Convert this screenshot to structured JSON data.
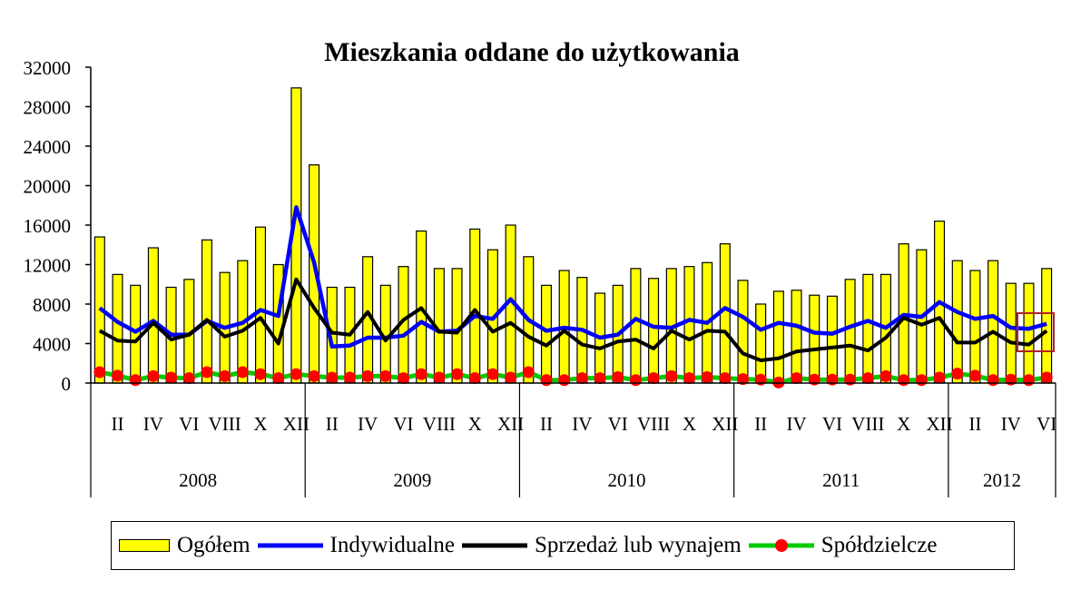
{
  "chart_data": {
    "type": "bar",
    "title": "Mieszkania oddane do użytkowania",
    "ylim": [
      0,
      32000
    ],
    "yticks": [
      "0",
      "4000",
      "8000",
      "12000",
      "16000",
      "20000",
      "24000",
      "28000",
      "32000"
    ],
    "x_tick_labels": [
      "II",
      "IV",
      "VI",
      "VIII",
      "X",
      "XII",
      "II",
      "IV",
      "VI",
      "VIII",
      "X",
      "XII",
      "II",
      "IV",
      "VI",
      "VIII",
      "X",
      "XII",
      "II",
      "IV",
      "VI",
      "VIII",
      "X",
      "XII",
      "II",
      "IV",
      "VI"
    ],
    "years": [
      "2008",
      "2009",
      "2010",
      "2011",
      "2012"
    ],
    "months_per_year": [
      12,
      12,
      12,
      12,
      6
    ],
    "categories": [
      "I 2008",
      "II 2008",
      "III 2008",
      "IV 2008",
      "V 2008",
      "VI 2008",
      "VII 2008",
      "VIII 2008",
      "IX 2008",
      "X 2008",
      "XI 2008",
      "XII 2008",
      "I 2009",
      "II 2009",
      "III 2009",
      "IV 2009",
      "V 2009",
      "VI 2009",
      "VII 2009",
      "VIII 2009",
      "IX 2009",
      "X 2009",
      "XI 2009",
      "XII 2009",
      "I 2010",
      "II 2010",
      "III 2010",
      "IV 2010",
      "V 2010",
      "VI 2010",
      "VII 2010",
      "VIII 2010",
      "IX 2010",
      "X 2010",
      "XI 2010",
      "XII 2010",
      "I 2011",
      "II 2011",
      "III 2011",
      "IV 2011",
      "V 2011",
      "VI 2011",
      "VII 2011",
      "VIII 2011",
      "IX 2011",
      "X 2011",
      "XI 2011",
      "XII 2011",
      "I 2012",
      "II 2012",
      "III 2012",
      "IV 2012",
      "V 2012",
      "VI 2012"
    ],
    "series": [
      {
        "name": "Ogółem",
        "type": "bar",
        "color": "#ffff00",
        "values": [
          14800,
          11000,
          9900,
          13700,
          9700,
          10500,
          14500,
          11200,
          12400,
          15800,
          12000,
          29900,
          22100,
          9700,
          9700,
          12800,
          9900,
          11800,
          15400,
          11600,
          11600,
          15600,
          13500,
          16000,
          12800,
          9900,
          11400,
          10700,
          9100,
          9900,
          11600,
          10600,
          11600,
          11800,
          12200,
          14100,
          10400,
          8000,
          9300,
          9400,
          8900,
          8800,
          10500,
          11000,
          11000,
          14100,
          13500,
          16400,
          12400,
          11400,
          12400,
          10100,
          10100,
          11600
        ]
      },
      {
        "name": "Indywidualne",
        "type": "line",
        "color": "#0000ff",
        "values": [
          7600,
          6200,
          5200,
          6300,
          4900,
          4900,
          6300,
          5600,
          6100,
          7400,
          6800,
          17800,
          12200,
          3700,
          3800,
          4600,
          4600,
          4800,
          6200,
          5200,
          5300,
          6800,
          6500,
          8500,
          6400,
          5300,
          5600,
          5400,
          4600,
          4900,
          6500,
          5700,
          5600,
          6400,
          6100,
          7600,
          6700,
          5400,
          6100,
          5800,
          5100,
          5000,
          5700,
          6300,
          5600,
          6900,
          6700,
          8200,
          7200,
          6500,
          6800,
          5600,
          5500,
          6000
        ]
      },
      {
        "name": "Sprzedaż lub wynajem",
        "type": "line",
        "color": "#000000",
        "values": [
          5300,
          4300,
          4200,
          6100,
          4400,
          4900,
          6400,
          4700,
          5300,
          6600,
          4000,
          10500,
          7600,
          5100,
          4900,
          7200,
          4300,
          6400,
          7600,
          5200,
          5100,
          7400,
          5200,
          6100,
          4700,
          3800,
          5300,
          3900,
          3500,
          4200,
          4400,
          3500,
          5300,
          4400,
          5300,
          5200,
          3000,
          2300,
          2500,
          3200,
          3400,
          3600,
          3800,
          3300,
          4600,
          6600,
          5900,
          6600,
          4100,
          4100,
          5200,
          4100,
          3900,
          5300
        ]
      },
      {
        "name": "Spółdzielcze",
        "type": "line",
        "color": "#00cc00",
        "marker_color": "#ff0000",
        "values": [
          1100,
          750,
          300,
          700,
          550,
          500,
          1100,
          700,
          1100,
          900,
          500,
          900,
          700,
          550,
          550,
          700,
          700,
          500,
          900,
          550,
          900,
          500,
          900,
          550,
          1100,
          300,
          300,
          500,
          500,
          600,
          300,
          500,
          700,
          500,
          600,
          500,
          400,
          350,
          50,
          500,
          350,
          350,
          350,
          500,
          700,
          300,
          300,
          550,
          950,
          750,
          300,
          350,
          300,
          550
        ]
      }
    ],
    "legend": {
      "position": "bottom"
    },
    "grid": false
  }
}
